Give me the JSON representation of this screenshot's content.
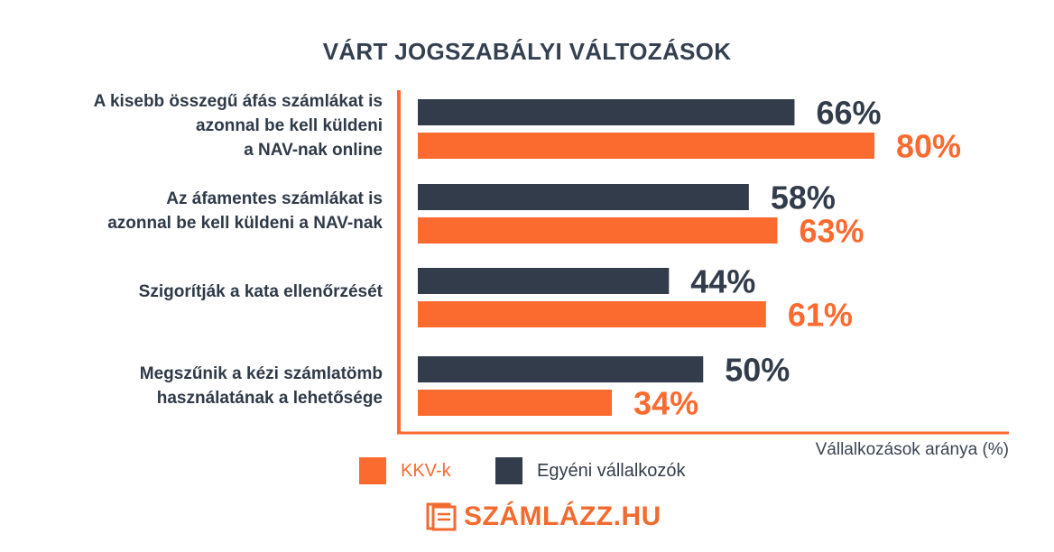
{
  "chart_data": {
    "type": "bar",
    "title": "VÁRT JOGSZABÁLYI VÁLTOZÁSOK",
    "categories": [
      "A kisebb összegű áfás számlákat is\nazonnal be kell küldeni\na NAV-nak online",
      "Az áfamentes számlákat is\nazonnal be kell küldeni a NAV-nak",
      "Szigorítják a kata ellenőrzését",
      "Megszűnik a kézi számlatömb\nhasználatának a lehetősége"
    ],
    "series": [
      {
        "name": "Egyéni vállalkozók",
        "color": "#323c4a",
        "values": [
          66,
          58,
          44,
          50
        ],
        "labels": [
          "66%",
          "58%",
          "44%",
          "50%"
        ]
      },
      {
        "name": "KKV-k",
        "color": "#fb6a2f",
        "values": [
          80,
          63,
          61,
          34
        ],
        "labels": [
          "80%",
          "63%",
          "61%",
          "34%"
        ]
      }
    ],
    "xlabel": "Vállalkozások aránya (%)",
    "xlim": [
      0,
      100
    ],
    "orientation": "horizontal",
    "grid": false
  },
  "legend": {
    "kkv_label": "KKV-k",
    "kkv_color": "#fb6a2f",
    "egyeni_label": "Egyéni vállalkozók",
    "egyeni_color": "#323c4a"
  },
  "logo": {
    "text": "SZÁMLÁZZ.HU",
    "icon": "invoice-sheets-icon"
  }
}
